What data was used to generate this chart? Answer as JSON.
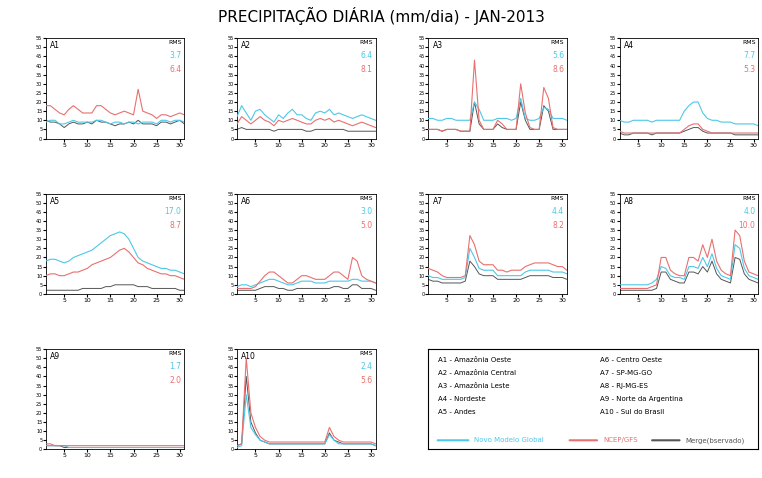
{
  "title": "PRECIPITAÇÃO DIÁRIA (mm/dia) - JAN-2013",
  "rms": {
    "A1": {
      "cyan": "3.7",
      "red": "6.4"
    },
    "A2": {
      "cyan": "6.4",
      "red": "8.1"
    },
    "A3": {
      "cyan": "5.6",
      "red": "8.6"
    },
    "A4": {
      "cyan": "7.7",
      "red": "5.3"
    },
    "A5": {
      "cyan": "17.0",
      "red": "8.7"
    },
    "A6": {
      "cyan": "3.0",
      "red": "5.0"
    },
    "A7": {
      "cyan": "4.4",
      "red": "8.2"
    },
    "A8": {
      "cyan": "4.0",
      "red": "10.0"
    },
    "A9": {
      "cyan": "1.7",
      "red": "2.0"
    },
    "A10": {
      "cyan": "2.4",
      "red": "5.6"
    }
  },
  "color_cyan": "#4DC8E8",
  "color_red": "#E87070",
  "color_black": "#555555",
  "legend_labels": {
    "cyan": "Novo Modelo Global",
    "red": "NCEP/GFS",
    "black": "Merge(bservado)"
  },
  "series": {
    "A1": {
      "cyan": [
        9,
        10,
        10,
        8,
        8,
        9,
        10,
        9,
        9,
        9,
        9,
        10,
        10,
        9,
        8,
        9,
        9,
        8,
        9,
        9,
        8,
        9,
        9,
        9,
        8,
        10,
        10,
        9,
        10,
        10,
        9
      ],
      "red": [
        18,
        18,
        16,
        14,
        13,
        16,
        18,
        16,
        14,
        14,
        14,
        18,
        18,
        16,
        14,
        13,
        14,
        15,
        14,
        13,
        27,
        15,
        14,
        13,
        11,
        13,
        13,
        12,
        13,
        14,
        13
      ],
      "black": [
        10,
        9,
        9,
        8,
        6,
        8,
        9,
        8,
        8,
        9,
        8,
        10,
        9,
        9,
        8,
        7,
        8,
        8,
        9,
        8,
        10,
        8,
        8,
        8,
        7,
        9,
        9,
        8,
        9,
        10,
        8
      ]
    },
    "A2": {
      "cyan": [
        12,
        18,
        14,
        10,
        15,
        16,
        13,
        11,
        9,
        13,
        11,
        14,
        16,
        13,
        13,
        11,
        10,
        14,
        15,
        14,
        16,
        13,
        14,
        13,
        12,
        11,
        12,
        13,
        12,
        11,
        10
      ],
      "red": [
        8,
        12,
        10,
        8,
        10,
        12,
        10,
        9,
        7,
        10,
        9,
        10,
        11,
        10,
        9,
        8,
        8,
        10,
        11,
        10,
        11,
        9,
        10,
        9,
        8,
        7,
        8,
        9,
        8,
        7,
        6
      ],
      "black": [
        5,
        6,
        5,
        5,
        5,
        5,
        5,
        5,
        4,
        5,
        5,
        5,
        5,
        5,
        5,
        4,
        4,
        5,
        5,
        5,
        5,
        5,
        5,
        5,
        4,
        4,
        4,
        4,
        4,
        4,
        4
      ]
    },
    "A3": {
      "cyan": [
        11,
        11,
        10,
        10,
        11,
        11,
        10,
        10,
        10,
        10,
        20,
        16,
        10,
        10,
        10,
        11,
        11,
        11,
        10,
        11,
        22,
        11,
        10,
        10,
        11,
        17,
        16,
        11,
        11,
        11,
        10
      ],
      "red": [
        5,
        5,
        5,
        4,
        5,
        5,
        5,
        4,
        4,
        4,
        43,
        10,
        5,
        5,
        5,
        10,
        8,
        5,
        5,
        5,
        30,
        14,
        6,
        5,
        5,
        28,
        22,
        6,
        5,
        5,
        5
      ],
      "black": [
        5,
        5,
        5,
        4,
        5,
        5,
        5,
        4,
        4,
        4,
        20,
        8,
        5,
        5,
        5,
        8,
        6,
        5,
        5,
        5,
        20,
        10,
        5,
        5,
        5,
        18,
        15,
        5,
        5,
        5,
        5
      ]
    },
    "A4": {
      "cyan": [
        10,
        9,
        9,
        10,
        10,
        10,
        10,
        9,
        10,
        10,
        10,
        10,
        10,
        10,
        15,
        18,
        20,
        20,
        14,
        11,
        10,
        10,
        9,
        9,
        9,
        8,
        8,
        8,
        8,
        8,
        7
      ],
      "red": [
        4,
        3,
        3,
        3,
        3,
        3,
        3,
        3,
        3,
        3,
        3,
        3,
        3,
        3,
        5,
        7,
        8,
        8,
        5,
        4,
        3,
        3,
        3,
        3,
        3,
        3,
        3,
        3,
        3,
        3,
        3
      ],
      "black": [
        3,
        2,
        2,
        3,
        3,
        3,
        3,
        2,
        3,
        3,
        3,
        3,
        3,
        3,
        4,
        5,
        6,
        6,
        4,
        3,
        3,
        3,
        3,
        3,
        3,
        2,
        2,
        2,
        2,
        2,
        2
      ]
    },
    "A5": {
      "cyan": [
        18,
        19,
        19,
        18,
        17,
        18,
        20,
        21,
        22,
        23,
        24,
        26,
        28,
        30,
        32,
        33,
        34,
        33,
        30,
        25,
        20,
        18,
        17,
        16,
        15,
        14,
        14,
        13,
        13,
        12,
        11
      ],
      "red": [
        10,
        11,
        11,
        10,
        10,
        11,
        12,
        12,
        13,
        14,
        16,
        17,
        18,
        19,
        20,
        22,
        24,
        25,
        23,
        20,
        17,
        16,
        14,
        13,
        12,
        11,
        11,
        10,
        10,
        9,
        8
      ],
      "black": [
        2,
        2,
        2,
        2,
        2,
        2,
        2,
        2,
        3,
        3,
        3,
        3,
        3,
        4,
        4,
        5,
        5,
        5,
        5,
        5,
        4,
        4,
        4,
        3,
        3,
        3,
        3,
        3,
        3,
        2,
        2
      ]
    },
    "A6": {
      "cyan": [
        4,
        5,
        5,
        4,
        5,
        6,
        7,
        8,
        8,
        7,
        6,
        5,
        5,
        6,
        7,
        7,
        7,
        6,
        6,
        6,
        7,
        7,
        7,
        7,
        7,
        8,
        8,
        7,
        7,
        7,
        6
      ],
      "red": [
        3,
        3,
        3,
        3,
        4,
        7,
        10,
        12,
        12,
        10,
        8,
        6,
        6,
        8,
        10,
        10,
        9,
        8,
        8,
        8,
        10,
        12,
        12,
        10,
        8,
        20,
        18,
        10,
        8,
        7,
        6
      ],
      "black": [
        2,
        2,
        2,
        2,
        2,
        3,
        4,
        4,
        4,
        3,
        3,
        2,
        2,
        3,
        3,
        3,
        3,
        3,
        3,
        3,
        3,
        4,
        4,
        3,
        3,
        5,
        5,
        3,
        3,
        3,
        2
      ]
    },
    "A7": {
      "cyan": [
        10,
        9,
        9,
        8,
        8,
        8,
        8,
        8,
        9,
        25,
        20,
        14,
        13,
        13,
        13,
        10,
        10,
        10,
        10,
        10,
        10,
        12,
        13,
        13,
        13,
        13,
        13,
        12,
        12,
        12,
        11
      ],
      "red": [
        14,
        13,
        12,
        10,
        9,
        9,
        9,
        9,
        10,
        32,
        27,
        18,
        16,
        16,
        16,
        13,
        13,
        12,
        13,
        13,
        13,
        15,
        16,
        17,
        17,
        17,
        17,
        16,
        15,
        15,
        13
      ],
      "black": [
        8,
        7,
        7,
        6,
        6,
        6,
        6,
        6,
        7,
        18,
        15,
        11,
        10,
        10,
        10,
        8,
        8,
        8,
        8,
        8,
        8,
        9,
        10,
        10,
        10,
        10,
        10,
        9,
        9,
        9,
        8
      ]
    },
    "A8": {
      "cyan": [
        5,
        5,
        5,
        5,
        5,
        5,
        5,
        6,
        8,
        15,
        14,
        10,
        9,
        9,
        8,
        15,
        15,
        14,
        20,
        15,
        22,
        14,
        10,
        9,
        8,
        27,
        25,
        14,
        10,
        9,
        8
      ],
      "red": [
        3,
        3,
        3,
        3,
        3,
        3,
        3,
        4,
        5,
        20,
        20,
        13,
        11,
        10,
        10,
        20,
        20,
        18,
        27,
        20,
        30,
        18,
        13,
        11,
        10,
        35,
        32,
        18,
        12,
        11,
        10
      ],
      "black": [
        2,
        2,
        2,
        2,
        2,
        2,
        2,
        2,
        3,
        12,
        12,
        8,
        7,
        6,
        6,
        12,
        12,
        11,
        15,
        12,
        18,
        11,
        8,
        7,
        6,
        20,
        19,
        11,
        8,
        7,
        6
      ]
    },
    "A9": {
      "cyan": [
        2,
        2,
        2,
        2,
        2,
        1,
        1,
        1,
        1,
        1,
        1,
        1,
        1,
        1,
        1,
        1,
        1,
        1,
        1,
        1,
        1,
        1,
        1,
        1,
        1,
        1,
        1,
        1,
        1,
        1,
        1
      ],
      "red": [
        3,
        3,
        2,
        2,
        2,
        2,
        2,
        2,
        2,
        2,
        2,
        2,
        2,
        2,
        2,
        2,
        2,
        2,
        2,
        2,
        2,
        2,
        2,
        2,
        2,
        2,
        2,
        2,
        2,
        2,
        2
      ],
      "black": [
        2,
        2,
        2,
        2,
        1,
        1,
        1,
        1,
        1,
        1,
        1,
        1,
        1,
        1,
        1,
        1,
        1,
        1,
        1,
        1,
        1,
        1,
        1,
        1,
        1,
        1,
        1,
        1,
        1,
        1,
        1
      ]
    },
    "A10": {
      "cyan": [
        1,
        2,
        30,
        12,
        8,
        5,
        4,
        3,
        3,
        3,
        3,
        3,
        3,
        3,
        3,
        3,
        3,
        3,
        3,
        3,
        8,
        5,
        3,
        3,
        3,
        3,
        3,
        3,
        3,
        3,
        2
      ],
      "red": [
        2,
        3,
        50,
        20,
        12,
        7,
        5,
        4,
        4,
        4,
        4,
        4,
        4,
        4,
        4,
        4,
        4,
        4,
        4,
        4,
        12,
        7,
        5,
        4,
        4,
        4,
        4,
        4,
        4,
        4,
        3
      ],
      "black": [
        2,
        3,
        40,
        15,
        9,
        5,
        4,
        3,
        3,
        3,
        3,
        3,
        3,
        3,
        3,
        3,
        3,
        3,
        3,
        3,
        9,
        5,
        4,
        3,
        3,
        3,
        3,
        3,
        3,
        3,
        2
      ]
    }
  }
}
